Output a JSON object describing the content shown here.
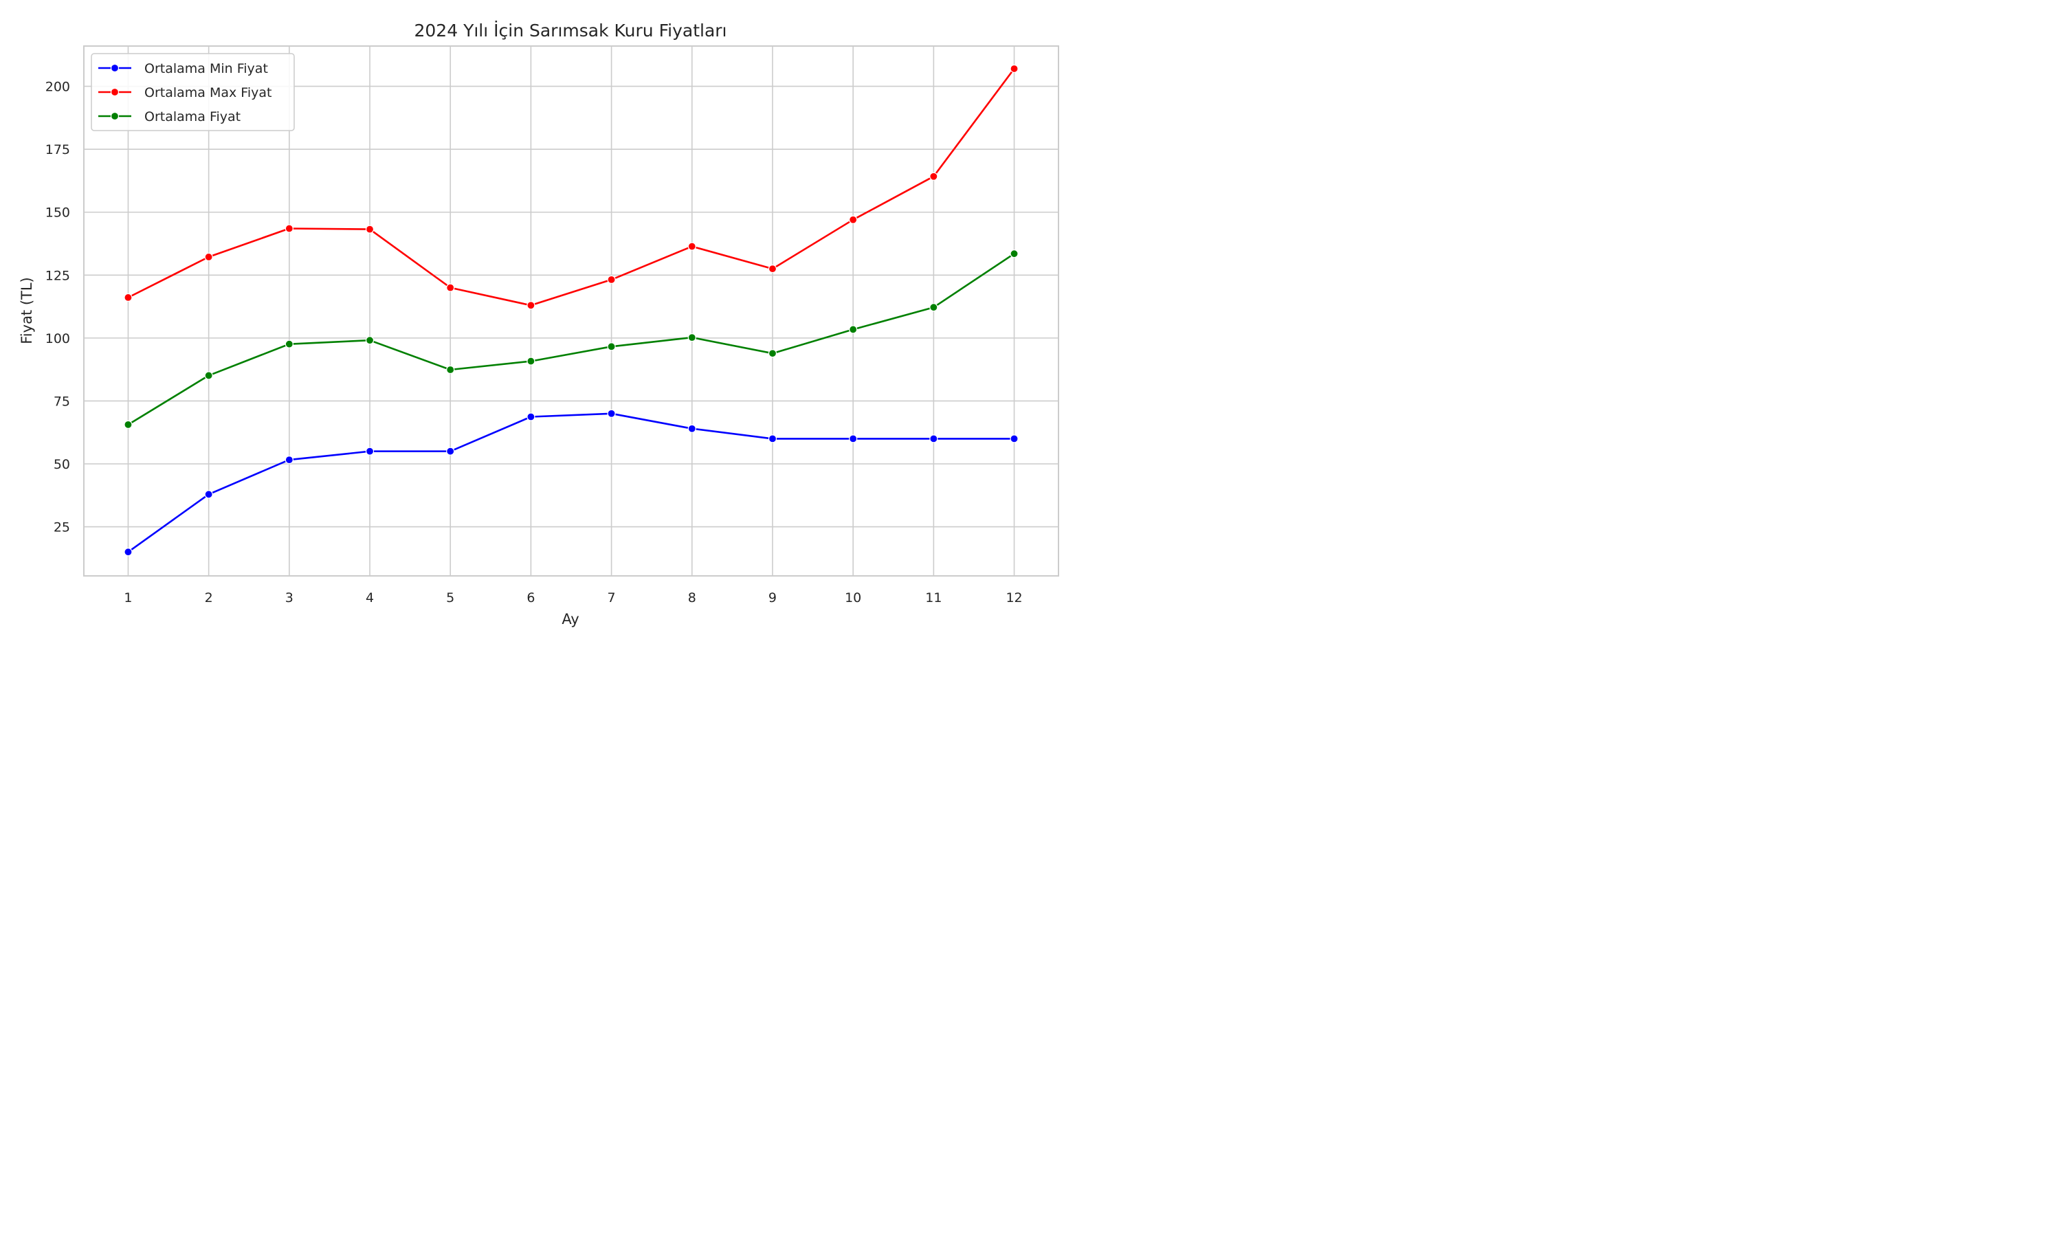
{
  "chart_data": {
    "type": "line",
    "title": "2024 Yılı İçin Sarımsak Kuru Fiyatları",
    "xlabel": "Ay",
    "ylabel": "Fiyat (TL)",
    "x": [
      1,
      2,
      3,
      4,
      5,
      6,
      7,
      8,
      9,
      10,
      11,
      12
    ],
    "x_tick_labels": [
      "1",
      "2",
      "3",
      "4",
      "5",
      "6",
      "7",
      "8",
      "9",
      "10",
      "11",
      "12"
    ],
    "xlim": [
      0.45,
      12.55
    ],
    "ylim": [
      5.5,
      216
    ],
    "y_ticks": [
      25,
      50,
      75,
      100,
      125,
      150,
      175,
      200
    ],
    "y_tick_labels": [
      "25",
      "50",
      "75",
      "100",
      "125",
      "150",
      "175",
      "200"
    ],
    "grid": true,
    "legend_position": "top-left",
    "series": [
      {
        "name": "Ortalama Min Fiyat",
        "color": "#0000ff",
        "values": [
          15,
          37.9,
          51.6,
          55,
          55,
          68.7,
          70,
          64,
          60,
          60,
          60,
          60
        ]
      },
      {
        "name": "Ortalama Max Fiyat",
        "color": "#ff0000",
        "values": [
          116.1,
          132.2,
          143.5,
          143.2,
          120,
          113,
          123.2,
          136.4,
          127.5,
          147,
          164.2,
          207
        ]
      },
      {
        "name": "Ortalama Fiyat",
        "color": "#008000",
        "values": [
          65.6,
          85.1,
          97.6,
          99.1,
          87.4,
          90.8,
          96.6,
          100.2,
          93.9,
          103.4,
          112.2,
          133.5
        ]
      }
    ]
  }
}
